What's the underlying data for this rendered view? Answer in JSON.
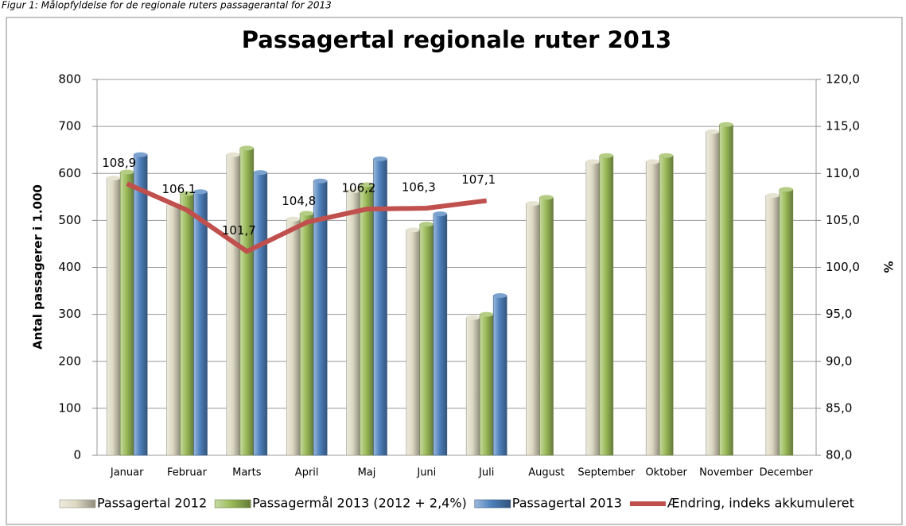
{
  "caption": "Figur 1: Målopfyldelse for de regionale ruters passagerantal for 2013",
  "chart_data": {
    "type": "bar-line",
    "title": "Passagertal regionale ruter 2013",
    "y_label": "Antal passagerer i 1.000",
    "y2_label": "%",
    "categories": [
      "Januar",
      "Februar",
      "Marts",
      "April",
      "Maj",
      "Juni",
      "Juli",
      "August",
      "September",
      "Oktober",
      "November",
      "December"
    ],
    "series": [
      {
        "name": "Passagertal 2012",
        "color": "#ddd9c3",
        "values": [
          590,
          533,
          640,
          503,
          563,
          480,
          293,
          536,
          625,
          625,
          689,
          553
        ]
      },
      {
        "name": "Passagermål 2013 (2012 + 2,4%)",
        "color": "#9bbb59",
        "values": [
          603,
          557,
          654,
          515,
          576,
          492,
          300,
          549,
          638,
          638,
          704,
          566
        ]
      },
      {
        "name": "Passagertal 2013",
        "color": "#4f81bd",
        "values": [
          640,
          561,
          602,
          584,
          631,
          514,
          340,
          null,
          null,
          null,
          null,
          null
        ]
      },
      {
        "name": "Ændring, indeks akkumuleret",
        "color": "#c0504d",
        "type": "line",
        "axis": "y2",
        "values": [
          108.9,
          106.1,
          101.7,
          104.8,
          106.2,
          106.3,
          107.1,
          null,
          null,
          null,
          null,
          null
        ],
        "value_labels": [
          "108,9",
          "106,1",
          "101,7",
          "104,8",
          "106,2",
          "106,3",
          "107,1",
          null,
          null,
          null,
          null,
          null
        ]
      }
    ],
    "ylim": [
      0,
      800
    ],
    "yticks": [
      0,
      100,
      200,
      300,
      400,
      500,
      600,
      700,
      800
    ],
    "y2lim": [
      80,
      120
    ],
    "y2ticks": [
      {
        "value": 80,
        "label": "80,0"
      },
      {
        "value": 85,
        "label": "85,0"
      },
      {
        "value": 90,
        "label": "90,0"
      },
      {
        "value": 95,
        "label": "95,0"
      },
      {
        "value": 100,
        "label": "100,0"
      },
      {
        "value": 105,
        "label": "105,0"
      },
      {
        "value": 110,
        "label": "110,0"
      },
      {
        "value": 115,
        "label": "115,0"
      },
      {
        "value": 120,
        "label": "120,0"
      }
    ],
    "grid": true,
    "legend": "bottom"
  }
}
